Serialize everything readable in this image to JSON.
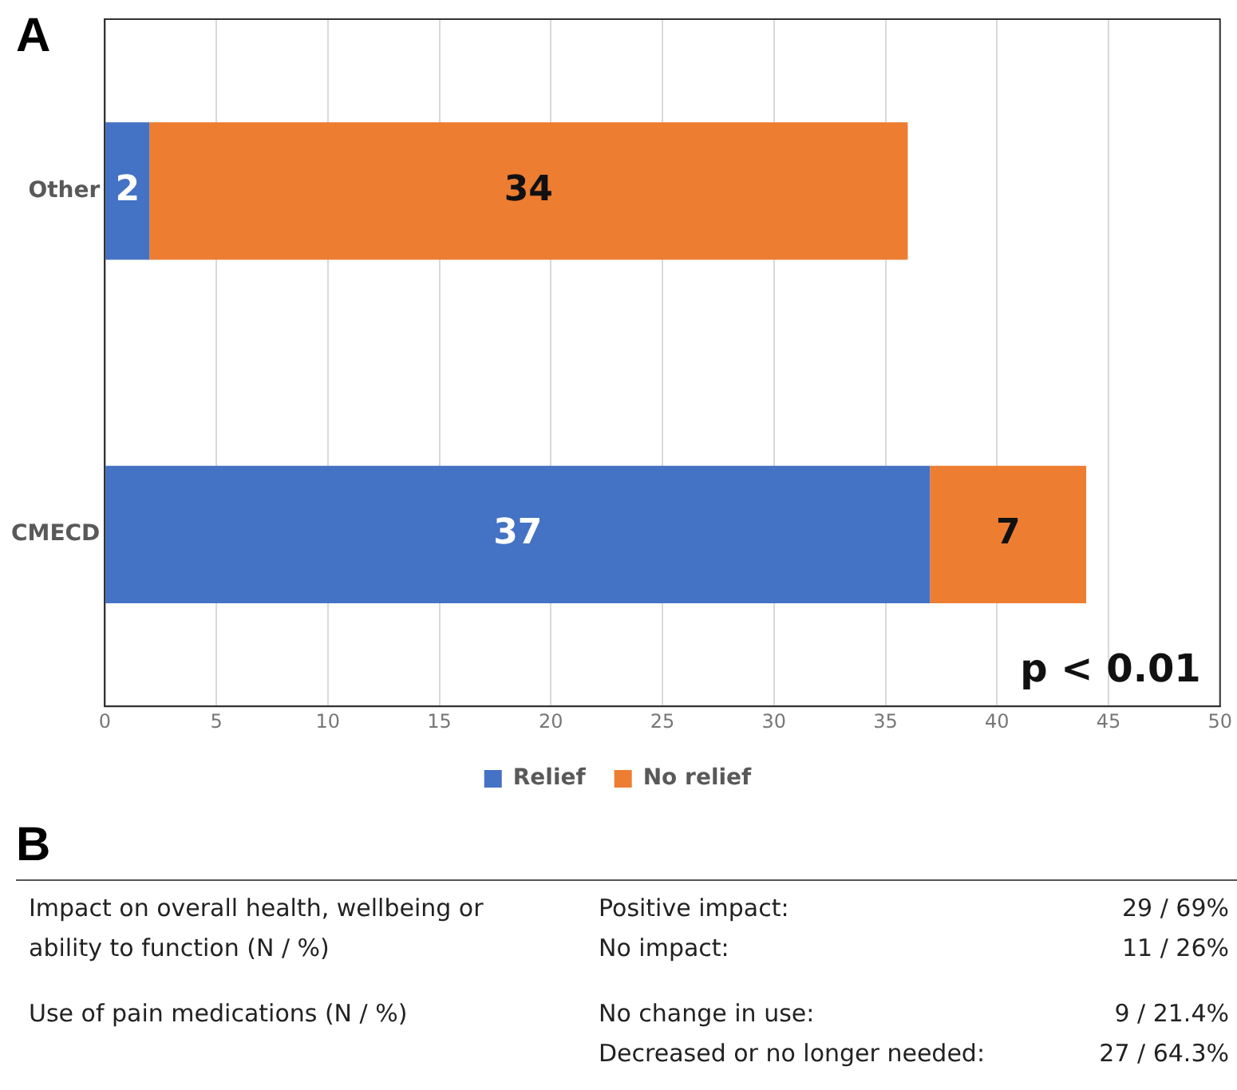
{
  "chart_data": [
    {
      "type": "bar",
      "title": "A",
      "orientation": "horizontal",
      "stacked": true,
      "categories": [
        "Other",
        "CMECD"
      ],
      "series": [
        {
          "name": "Relief",
          "color": "#4472c4",
          "values": [
            2,
            37
          ]
        },
        {
          "name": "No relief",
          "color": "#ed7d31",
          "values": [
            34,
            7
          ]
        }
      ],
      "xlim": [
        0,
        50
      ],
      "xticks": [
        0,
        5,
        10,
        15,
        20,
        25,
        30,
        35,
        40,
        45,
        50
      ],
      "grid": "x",
      "legend": "bottom",
      "data_labels": true,
      "annotations": [
        "p < 0.01"
      ]
    },
    {
      "type": "other",
      "title": "B",
      "annotations": [
        "Impact on overall health, wellbeing or ability to function (N / %)",
        "Positive impact:",
        "29 / 69%",
        "No impact:",
        "11 / 26%",
        "Use of pain medications (N / %)",
        "No change in use:",
        "9 / 21.4%",
        "Decreased or no longer needed:",
        "27 / 64.3%"
      ]
    }
  ]
}
